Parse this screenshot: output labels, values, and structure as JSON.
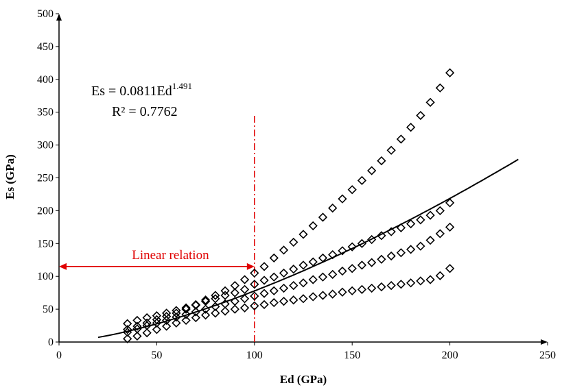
{
  "chart_data": {
    "type": "scatter",
    "title": "",
    "xlabel": "Ed (GPa)",
    "ylabel": "Es (GPa)",
    "xlim": [
      0,
      250
    ],
    "ylim": [
      0,
      500
    ],
    "xticks": [
      "0",
      "50",
      "100",
      "150",
      "200",
      "250"
    ],
    "yticks": [
      "0",
      "50",
      "100",
      "150",
      "200",
      "250",
      "300",
      "350",
      "400",
      "450",
      "500"
    ],
    "grid": false,
    "legend": "none",
    "marker": "diamond-open",
    "colors": {
      "points": "#000000",
      "trendline": "#000000",
      "annotation": "#e00000"
    },
    "equation": {
      "base": "Es = 0.0811Ed",
      "exponent": "1.491",
      "r2": "R² = 0.7762"
    },
    "trendline": {
      "type": "power",
      "coefficient": 0.0811,
      "exponent": 1.491,
      "x_range": [
        20,
        235
      ]
    },
    "series": [
      {
        "x": [
          35,
          40,
          45,
          50,
          55,
          60,
          65,
          70,
          75,
          80,
          85,
          90,
          95,
          100,
          105,
          110,
          115,
          120,
          125,
          130,
          135,
          140,
          145,
          150,
          155,
          160,
          165,
          170,
          175,
          180,
          185,
          190,
          195,
          200
        ],
        "y": [
          19,
          24,
          29,
          34,
          39,
          44,
          50,
          57,
          64,
          71,
          78,
          86,
          95,
          105,
          115,
          128,
          140,
          152,
          164,
          177,
          190,
          204,
          218,
          232,
          246,
          261,
          276,
          292,
          309,
          327,
          345,
          365,
          387,
          410
        ]
      },
      {
        "x": [
          35,
          40,
          45,
          50,
          55,
          60,
          65,
          70,
          75,
          80,
          85,
          90,
          95,
          100,
          105,
          110,
          115,
          120,
          125,
          130,
          135,
          140,
          145,
          150,
          155,
          160,
          165,
          170,
          175,
          180,
          185,
          190,
          195,
          200
        ],
        "y": [
          28,
          33,
          37,
          40,
          44,
          48,
          52,
          56,
          62,
          66,
          71,
          75,
          80,
          88,
          94,
          99,
          105,
          111,
          117,
          122,
          128,
          133,
          139,
          145,
          150,
          156,
          162,
          168,
          174,
          180,
          186,
          193,
          200,
          212
        ]
      },
      {
        "x": [
          35,
          40,
          45,
          50,
          55,
          60,
          65,
          70,
          75,
          80,
          85,
          90,
          95,
          100,
          105,
          110,
          115,
          120,
          125,
          130,
          135,
          140,
          145,
          150,
          155,
          160,
          165,
          170,
          175,
          180,
          185,
          190,
          195,
          200
        ],
        "y": [
          15,
          20,
          25,
          29,
          33,
          38,
          42,
          46,
          50,
          54,
          58,
          62,
          66,
          70,
          74,
          78,
          82,
          86,
          90,
          95,
          99,
          103,
          108,
          112,
          117,
          121,
          126,
          131,
          136,
          141,
          146,
          155,
          165,
          175
        ]
      },
      {
        "x": [
          35,
          40,
          45,
          50,
          55,
          60,
          65,
          70,
          75,
          80,
          85,
          90,
          95,
          100,
          105,
          110,
          115,
          120,
          125,
          130,
          135,
          140,
          145,
          150,
          155,
          160,
          165,
          170,
          175,
          180,
          185,
          190,
          195,
          200
        ],
        "y": [
          5,
          9,
          14,
          19,
          24,
          29,
          33,
          37,
          41,
          44,
          47,
          50,
          52,
          55,
          57,
          60,
          62,
          64,
          66,
          69,
          71,
          73,
          76,
          78,
          80,
          82,
          84,
          86,
          88,
          90,
          93,
          95,
          101,
          112
        ]
      }
    ],
    "reference_line": {
      "x": 100,
      "y_end": 345,
      "style": "dash-dot"
    },
    "annotation": {
      "label": "Linear relation",
      "from_x": 0,
      "to_x": 100,
      "y": 115
    }
  }
}
